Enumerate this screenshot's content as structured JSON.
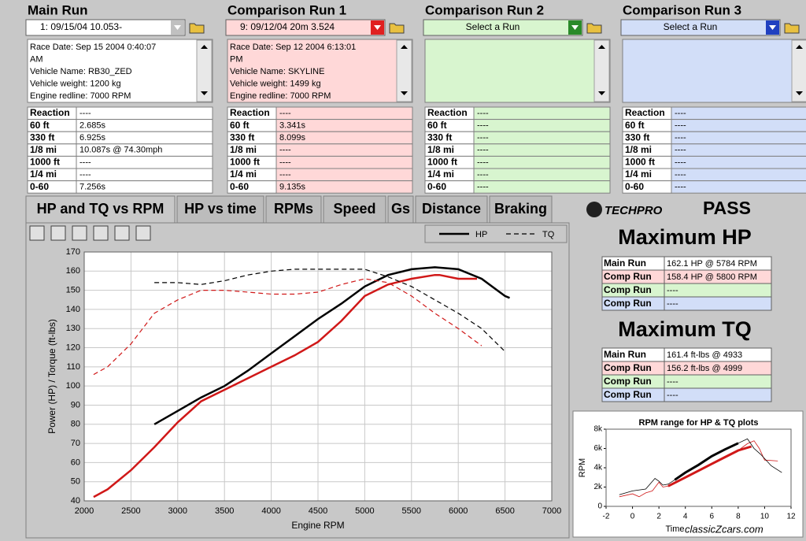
{
  "runs": [
    {
      "title": "Main Run",
      "selector": "1:  09/15/04 10.053-",
      "info": [
        "Race Date: Sep 15 2004  0:40:07",
        "AM",
        "Vehicle Name: RB30_ZED",
        "Vehicle weight: 1200 kg",
        "Engine redline: 7000 RPM"
      ],
      "table": [
        [
          "Reaction",
          "----"
        ],
        [
          "60 ft",
          "2.685s"
        ],
        [
          "330 ft",
          "6.925s"
        ],
        [
          "1/8 mi",
          "10.087s @ 74.30mph"
        ],
        [
          "1000 ft",
          "----"
        ],
        [
          "1/4 mi",
          "----"
        ],
        [
          "0-60",
          "7.256s"
        ]
      ]
    },
    {
      "title": "Comparison Run 1",
      "selector": "9:  09/12/04 20m  3.524",
      "info": [
        "Race Date: Sep 12 2004  6:13:01",
        "PM",
        "Vehicle Name: SKYLINE",
        "Vehicle weight: 1499 kg",
        "Engine redline: 7000 RPM"
      ],
      "table": [
        [
          "Reaction",
          "----"
        ],
        [
          "60 ft",
          "3.341s"
        ],
        [
          "330 ft",
          "8.099s"
        ],
        [
          "1/8 mi",
          "----"
        ],
        [
          "1000 ft",
          "----"
        ],
        [
          "1/4 mi",
          "----"
        ],
        [
          "0-60",
          "9.135s"
        ]
      ]
    },
    {
      "title": "Comparison Run 2",
      "selector": "Select a Run",
      "info": [],
      "table": [
        [
          "Reaction",
          "----"
        ],
        [
          "60 ft",
          "----"
        ],
        [
          "330 ft",
          "----"
        ],
        [
          "1/8 mi",
          "----"
        ],
        [
          "1000 ft",
          "----"
        ],
        [
          "1/4 mi",
          "----"
        ],
        [
          "0-60",
          "----"
        ]
      ]
    },
    {
      "title": "Comparison Run 3",
      "selector": "Select a Run",
      "info": [],
      "table": [
        [
          "Reaction",
          "----"
        ],
        [
          "60 ft",
          "----"
        ],
        [
          "330 ft",
          "----"
        ],
        [
          "1/8 mi",
          "----"
        ],
        [
          "1000 ft",
          "----"
        ],
        [
          "1/4 mi",
          "----"
        ],
        [
          "0-60",
          "----"
        ]
      ]
    }
  ],
  "tabs": [
    "HP and TQ vs RPM",
    "HP vs time",
    "RPMs",
    "Speed",
    "Gs",
    "Distance",
    "Braking"
  ],
  "logo": {
    "brand": "TECHPRO",
    "product": "PASS"
  },
  "max_hp": {
    "title": "Maximum HP",
    "rows": [
      [
        "Main Run",
        "162.1 HP @ 5784 RPM"
      ],
      [
        "Comp Run",
        "158.4 HP @ 5800 RPM"
      ],
      [
        "Comp Run",
        "----"
      ],
      [
        "Comp Run",
        "----"
      ]
    ]
  },
  "max_tq": {
    "title": "Maximum TQ",
    "rows": [
      [
        "Main Run",
        "161.4 ft-lbs @ 4933"
      ],
      [
        "Comp Run",
        "156.2 ft-lbs @ 4999"
      ],
      [
        "Comp Run",
        "----"
      ],
      [
        "Comp Run",
        "----"
      ]
    ]
  },
  "watermark": "classicZcars.com",
  "chart_data": [
    {
      "type": "line",
      "x_label": "Engine RPM",
      "y_label": "Power (HP) / Torque (ft-lbs)",
      "legend": [
        {
          "label": "HP",
          "dashed": false
        },
        {
          "label": "TQ",
          "dashed": true
        }
      ],
      "xlim": [
        2000,
        7000
      ],
      "ylim": [
        40,
        170
      ],
      "xticks": [
        2000,
        2500,
        3000,
        3500,
        4000,
        4500,
        5000,
        5500,
        6000,
        6500,
        7000
      ],
      "yticks": [
        40,
        50,
        60,
        70,
        80,
        90,
        100,
        110,
        120,
        130,
        140,
        150,
        160,
        170
      ],
      "grid": true,
      "series": [
        {
          "color": "#000000",
          "dashed": false,
          "width": 2.5,
          "x": [
            2750,
            3000,
            3250,
            3500,
            3750,
            4000,
            4250,
            4500,
            4750,
            5000,
            5250,
            5500,
            5750,
            6000,
            6250,
            6500,
            6550
          ],
          "values": [
            80,
            87,
            94,
            100,
            108,
            117,
            126,
            135,
            143,
            152,
            158,
            161,
            162,
            161,
            156,
            147,
            146
          ]
        },
        {
          "color": "#d01818",
          "dashed": false,
          "width": 2.5,
          "x": [
            2100,
            2250,
            2500,
            2750,
            3000,
            3250,
            3500,
            3750,
            4000,
            4250,
            4500,
            4750,
            5000,
            5250,
            5500,
            5750,
            5800,
            6000,
            6200
          ],
          "values": [
            42,
            46,
            56,
            68,
            81,
            92,
            98,
            104,
            110,
            116,
            123,
            134,
            147,
            153,
            156,
            158,
            158,
            156,
            156
          ]
        },
        {
          "color": "#000000",
          "dashed": true,
          "width": 1.2,
          "x": [
            2750,
            3000,
            3250,
            3500,
            3750,
            4000,
            4250,
            4500,
            4750,
            5000,
            5250,
            5500,
            5750,
            6000,
            6250,
            6500
          ],
          "values": [
            154,
            154,
            153,
            155,
            158,
            160,
            161,
            161,
            161,
            161,
            157,
            152,
            145,
            138,
            130,
            118
          ]
        },
        {
          "color": "#d01818",
          "dashed": true,
          "width": 1.2,
          "x": [
            2100,
            2250,
            2500,
            2750,
            3000,
            3250,
            3500,
            3750,
            4000,
            4250,
            4500,
            4750,
            5000,
            5250,
            5500,
            5750,
            6000,
            6250
          ],
          "values": [
            106,
            110,
            122,
            138,
            145,
            150,
            150,
            149,
            148,
            148,
            149,
            153,
            156,
            154,
            147,
            138,
            130,
            121
          ]
        }
      ]
    },
    {
      "type": "line",
      "title": "RPM range for HP & TQ plots",
      "x_label": "Time",
      "y_label": "RPM",
      "xlim": [
        -2,
        12
      ],
      "ylim": [
        0,
        8000
      ],
      "xticks": [
        -2,
        0,
        2,
        4,
        6,
        8,
        10,
        12
      ],
      "yticks": [
        {
          "value": 0,
          "label": "0"
        },
        {
          "value": 2000,
          "label": "2k"
        },
        {
          "value": 4000,
          "label": "4k"
        },
        {
          "value": 6000,
          "label": "6k"
        },
        {
          "value": 8000,
          "label": "8k"
        }
      ],
      "grid": false,
      "series": [
        {
          "color": "#d01818",
          "dashed": false,
          "width": 0.8,
          "x": [
            -1,
            0,
            0.5,
            1,
            1.5,
            2,
            2.3,
            2.7,
            4,
            5,
            6,
            7,
            8,
            8.7,
            9.2,
            9.6,
            10,
            11
          ],
          "values": [
            1000,
            1300,
            1000,
            1400,
            1600,
            2500,
            2000,
            2100,
            3000,
            3700,
            4400,
            5100,
            5800,
            6500,
            6800,
            6000,
            4800,
            4700
          ]
        },
        {
          "color": "#000000",
          "dashed": false,
          "width": 0.8,
          "x": [
            -1,
            0,
            1,
            1.7,
            2,
            2.3,
            2.7,
            3.2,
            4,
            5,
            6,
            7,
            8,
            8.7,
            9.2,
            9.7,
            10.5,
            11.3
          ],
          "values": [
            1200,
            1600,
            1800,
            2900,
            2600,
            2200,
            2300,
            2750,
            3500,
            4300,
            5200,
            5900,
            6550,
            7000,
            6000,
            5400,
            4200,
            3500
          ]
        },
        {
          "color": "#000000",
          "dashed": false,
          "width": 3,
          "x": [
            3.2,
            4,
            5,
            6,
            7,
            8
          ],
          "values": [
            2750,
            3500,
            4300,
            5200,
            5900,
            6550
          ]
        },
        {
          "color": "#d01818",
          "dashed": false,
          "width": 3,
          "x": [
            2.7,
            4,
            5,
            6,
            7,
            8,
            9
          ],
          "values": [
            2100,
            3000,
            3700,
            4400,
            5100,
            5800,
            6200
          ]
        }
      ]
    }
  ]
}
